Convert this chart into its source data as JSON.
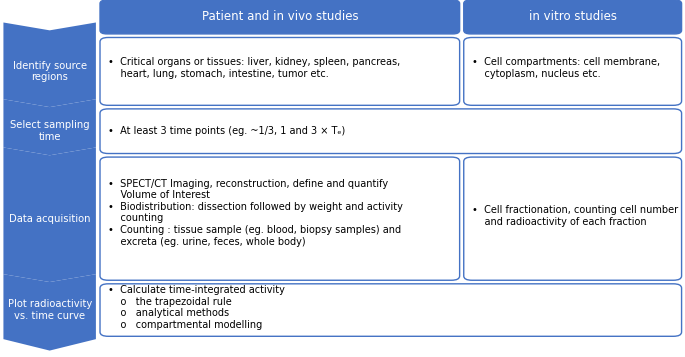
{
  "header_color": "#4472C4",
  "header_text_color": "#FFFFFF",
  "arrow_color": "#4472C4",
  "box_border_color": "#4472C4",
  "box_fill_color": "#FFFFFF",
  "bg_color": "#FFFFFF",
  "headers": [
    "Patient and in vivo studies",
    "in vitro studies"
  ],
  "row_labels": [
    "Identify source\nregions",
    "Select sampling\ntime",
    "Data acquisition",
    "Plot radioactivity\nvs. time curve"
  ],
  "row1_left": "•  Critical organs or tissues: liver, kidney, spleen, pancreas,\n    heart, lung, stomach, intestine, tumor etc.",
  "row1_right": "•  Cell compartments: cell membrane,\n    cytoplasm, nucleus etc.",
  "row2_left": "•  At least 3 time points (eg. ~1/3, 1 and 3 × Tₑ)",
  "row3_left": "•  SPECT/CT Imaging, reconstruction, define and quantify\n    Volume of Interest\n•  Biodistribution: dissection followed by weight and activity\n    counting\n•  Counting : tissue sample (eg. blood, biopsy samples) and\n    excreta (eg. urine, feces, whole body)",
  "row3_right": "•  Cell fractionation, counting cell number\n    and radioactivity of each fraction",
  "row4_left": "•  Calculate time-integrated activity\n    o   the trapezoidal rule\n    o   analytical methods\n    o   compartmental modelling",
  "font_size_header": 8.5,
  "font_size_body": 7.0,
  "font_size_label": 7.2,
  "lw": 1.0
}
